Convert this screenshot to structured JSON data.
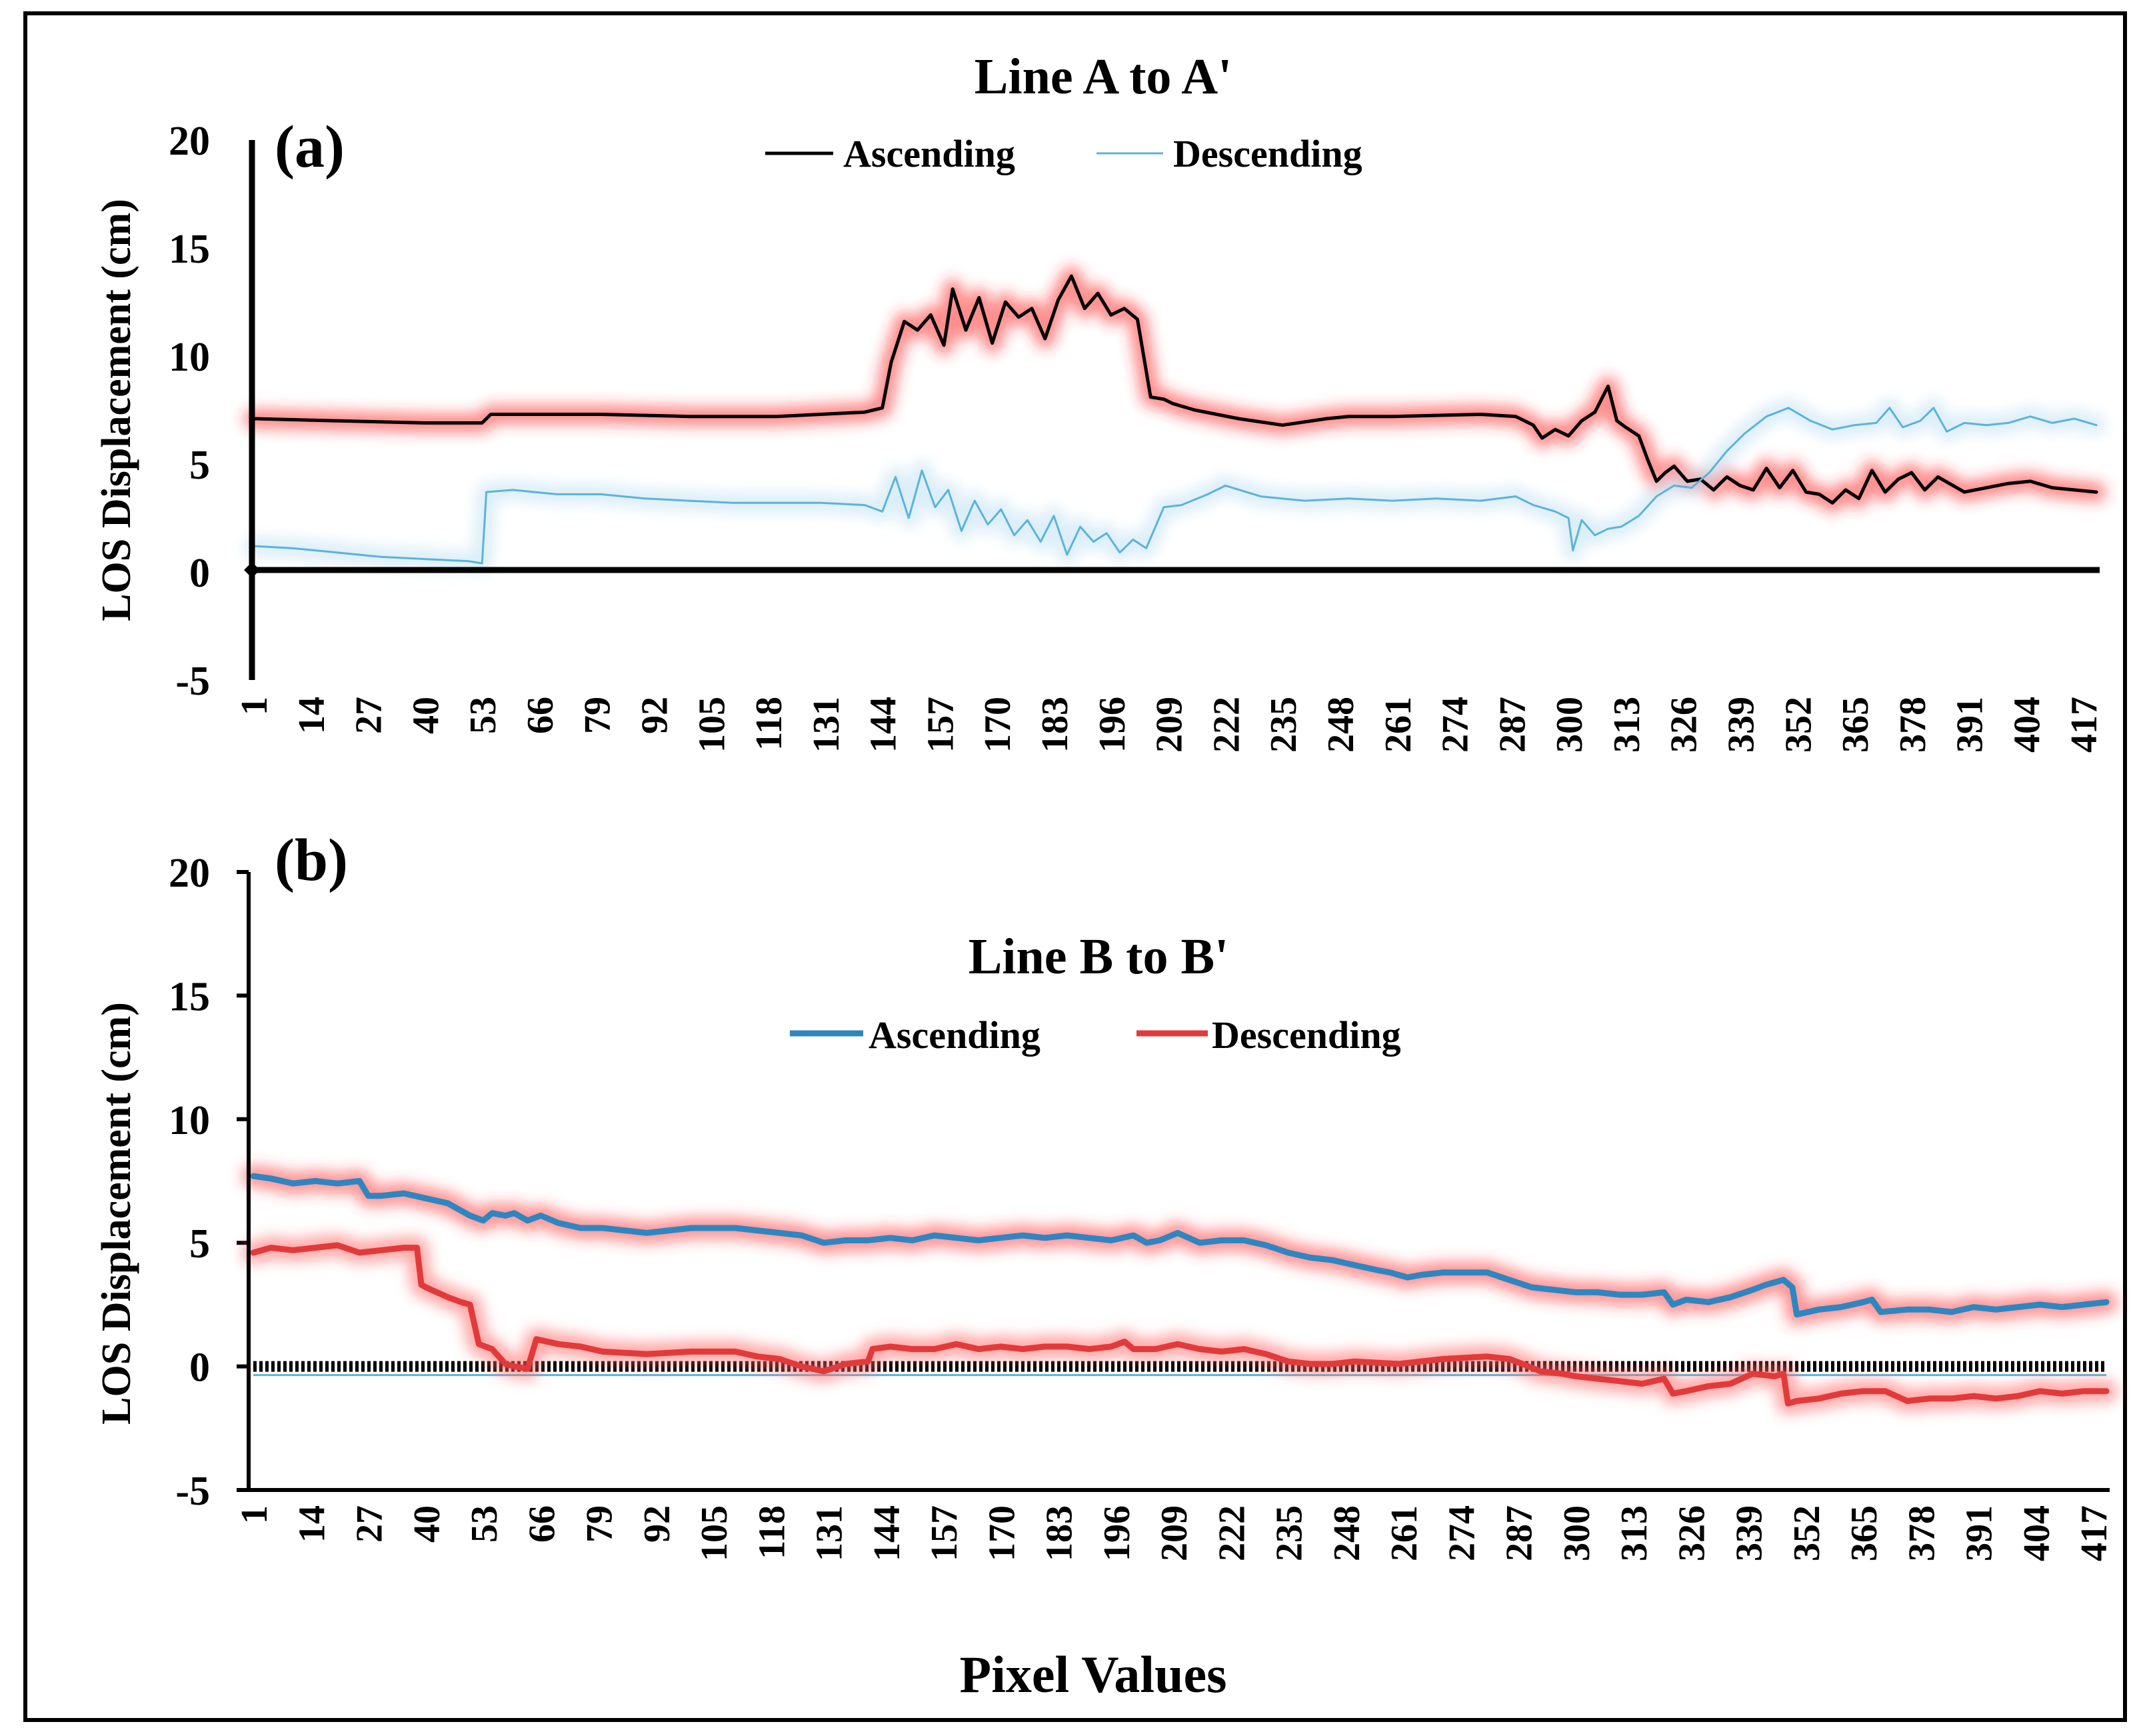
{
  "figure": {
    "xlabel": "Pixel Values"
  },
  "chart_data": [
    {
      "type": "line",
      "panel_label": "(a)",
      "title": "Line A to A'",
      "ylabel": "LOS Displacement (cm)",
      "xlabel": "",
      "ylim": [
        -5,
        20
      ],
      "y_ticks": [
        "20",
        "15",
        "10",
        "5",
        "0",
        "-5"
      ],
      "x_ticks": [
        "1",
        "14",
        "27",
        "40",
        "53",
        "66",
        "79",
        "92",
        "105",
        "118",
        "131",
        "144",
        "157",
        "170",
        "183",
        "196",
        "209",
        "222",
        "235",
        "248",
        "261",
        "274",
        "287",
        "300",
        "313",
        "326",
        "339",
        "352",
        "365",
        "378",
        "391",
        "404",
        "417"
      ],
      "xlim": [
        1,
        420
      ],
      "legend": "top-center",
      "highlight": "red glow behind Ascending",
      "series": [
        {
          "name": "Ascending",
          "color": "#000000",
          "glow_color": "#ff3030",
          "x": [
            1,
            20,
            40,
            53,
            55,
            80,
            100,
            120,
            140,
            144,
            146,
            149,
            152,
            155,
            158,
            160,
            163,
            166,
            169,
            172,
            175,
            178,
            181,
            184,
            187,
            190,
            193,
            196,
            199,
            202,
            205,
            208,
            210,
            215,
            225,
            235,
            245,
            250,
            260,
            280,
            288,
            292,
            294,
            297,
            300,
            303,
            306,
            309,
            311,
            313,
            316,
            318,
            320,
            322,
            324,
            327,
            330,
            333,
            336,
            339,
            342,
            345,
            348,
            351,
            354,
            357,
            360,
            363,
            366,
            369,
            372,
            375,
            378,
            381,
            384,
            390,
            400,
            405,
            410,
            420
          ],
          "y": [
            7.1,
            7.0,
            6.9,
            6.9,
            7.3,
            7.3,
            7.2,
            7.2,
            7.4,
            7.6,
            9.7,
            11.6,
            11.2,
            11.9,
            10.5,
            13.1,
            11.2,
            12.7,
            10.6,
            12.5,
            11.8,
            12.2,
            10.8,
            12.6,
            13.7,
            12.2,
            12.9,
            11.9,
            12.2,
            11.7,
            8.1,
            8.0,
            7.8,
            7.5,
            7.1,
            6.8,
            7.1,
            7.2,
            7.2,
            7.3,
            7.2,
            6.8,
            6.2,
            6.6,
            6.3,
            7.0,
            7.4,
            8.6,
            7.0,
            6.7,
            6.3,
            5.2,
            4.2,
            4.6,
            4.9,
            4.2,
            4.3,
            3.8,
            4.4,
            4.0,
            3.8,
            4.8,
            3.9,
            4.7,
            3.7,
            3.6,
            3.2,
            3.8,
            3.4,
            4.7,
            3.7,
            4.3,
            4.6,
            3.8,
            4.4,
            3.7,
            4.1,
            4.2,
            3.9,
            3.7
          ]
        },
        {
          "name": "Descending",
          "color": "#5ab4d8",
          "glow_color": "#bfe0f2",
          "x": [
            1,
            10,
            20,
            30,
            40,
            50,
            53,
            54,
            60,
            70,
            80,
            90,
            100,
            110,
            120,
            130,
            140,
            144,
            147,
            150,
            153,
            156,
            159,
            162,
            165,
            168,
            171,
            174,
            177,
            180,
            183,
            186,
            189,
            192,
            195,
            198,
            201,
            204,
            208,
            212,
            218,
            222,
            230,
            240,
            250,
            260,
            270,
            280,
            288,
            292,
            297,
            300,
            301,
            303,
            306,
            309,
            312,
            316,
            320,
            324,
            328,
            332,
            336,
            340,
            345,
            350,
            355,
            360,
            365,
            370,
            373,
            376,
            380,
            383,
            386,
            390,
            395,
            400,
            405,
            410,
            415,
            420
          ],
          "y": [
            1.2,
            1.1,
            0.9,
            0.7,
            0.6,
            0.5,
            0.4,
            3.7,
            3.8,
            3.6,
            3.6,
            3.4,
            3.3,
            3.2,
            3.2,
            3.2,
            3.1,
            2.8,
            4.4,
            2.5,
            4.7,
            3.0,
            3.8,
            1.9,
            3.3,
            2.2,
            2.9,
            1.7,
            2.4,
            1.4,
            2.6,
            0.8,
            2.1,
            1.4,
            1.8,
            0.9,
            1.5,
            1.1,
            3.0,
            3.1,
            3.6,
            4.0,
            3.5,
            3.3,
            3.4,
            3.3,
            3.4,
            3.3,
            3.5,
            3.1,
            2.8,
            2.5,
            1.0,
            2.4,
            1.7,
            2.0,
            2.1,
            2.6,
            3.5,
            4.0,
            3.9,
            4.6,
            5.6,
            6.4,
            7.2,
            7.6,
            7.0,
            6.6,
            6.8,
            6.9,
            7.6,
            6.7,
            7.0,
            7.6,
            6.5,
            6.9,
            6.8,
            6.9,
            7.2,
            6.9,
            7.1,
            6.8
          ]
        }
      ]
    },
    {
      "type": "line",
      "panel_label": "(b)",
      "title": "Line B to B'",
      "ylabel": "LOS Displacement (cm)",
      "xlabel": "",
      "ylim": [
        -5,
        20
      ],
      "y_ticks": [
        "20",
        "15",
        "10",
        "5",
        "0",
        "-5"
      ],
      "x_ticks": [
        "1",
        "14",
        "27",
        "40",
        "53",
        "66",
        "79",
        "92",
        "105",
        "118",
        "131",
        "144",
        "157",
        "170",
        "183",
        "196",
        "209",
        "222",
        "235",
        "248",
        "261",
        "274",
        "287",
        "300",
        "313",
        "326",
        "339",
        "352",
        "365",
        "378",
        "391",
        "404",
        "417"
      ],
      "xlim": [
        1,
        420
      ],
      "legend": "center",
      "highlight": "red glow behind both series",
      "series": [
        {
          "name": "Ascending",
          "color": "#2e86c1",
          "glow_color": "#ff4040",
          "x": [
            1,
            5,
            10,
            15,
            20,
            25,
            27,
            30,
            35,
            40,
            45,
            50,
            53,
            55,
            58,
            60,
            63,
            66,
            70,
            75,
            80,
            90,
            100,
            110,
            120,
            125,
            130,
            135,
            140,
            145,
            150,
            155,
            160,
            165,
            170,
            175,
            180,
            185,
            190,
            195,
            200,
            203,
            206,
            210,
            215,
            220,
            225,
            230,
            235,
            240,
            245,
            250,
            255,
            258,
            260,
            262,
            265,
            270,
            275,
            280,
            285,
            290,
            295,
            300,
            305,
            310,
            315,
            320,
            322,
            325,
            330,
            335,
            340,
            343,
            345,
            347,
            349,
            350,
            355,
            360,
            365,
            367,
            369,
            375,
            380,
            385,
            390,
            395,
            400,
            405,
            410,
            415,
            420
          ],
          "y": [
            7.7,
            7.6,
            7.4,
            7.5,
            7.4,
            7.5,
            6.9,
            6.9,
            7.0,
            6.8,
            6.6,
            6.1,
            5.9,
            6.2,
            6.1,
            6.2,
            5.9,
            6.1,
            5.8,
            5.6,
            5.6,
            5.4,
            5.6,
            5.6,
            5.4,
            5.3,
            5.0,
            5.1,
            5.1,
            5.2,
            5.1,
            5.3,
            5.2,
            5.1,
            5.2,
            5.3,
            5.2,
            5.3,
            5.2,
            5.1,
            5.3,
            5.0,
            5.1,
            5.4,
            5.0,
            5.1,
            5.1,
            4.9,
            4.6,
            4.4,
            4.3,
            4.1,
            3.9,
            3.8,
            3.7,
            3.6,
            3.7,
            3.8,
            3.8,
            3.8,
            3.5,
            3.2,
            3.1,
            3.0,
            3.0,
            2.9,
            2.9,
            3.0,
            2.5,
            2.7,
            2.6,
            2.8,
            3.1,
            3.3,
            3.4,
            3.5,
            3.2,
            2.1,
            2.3,
            2.4,
            2.6,
            2.7,
            2.2,
            2.3,
            2.3,
            2.2,
            2.4,
            2.3,
            2.4,
            2.5,
            2.4,
            2.5,
            2.6
          ]
        },
        {
          "name": "Descending",
          "color": "#e23a3a",
          "glow_color": "#ff6060",
          "x": [
            1,
            5,
            10,
            15,
            20,
            25,
            30,
            35,
            38,
            39,
            40,
            45,
            48,
            50,
            52,
            55,
            58,
            60,
            63,
            65,
            70,
            75,
            80,
            90,
            100,
            110,
            115,
            120,
            125,
            130,
            135,
            140,
            141,
            145,
            150,
            155,
            160,
            165,
            170,
            175,
            180,
            185,
            190,
            195,
            198,
            200,
            205,
            210,
            215,
            220,
            225,
            230,
            235,
            240,
            245,
            250,
            260,
            270,
            280,
            285,
            288,
            292,
            297,
            300,
            305,
            310,
            315,
            320,
            322,
            325,
            330,
            335,
            340,
            345,
            347,
            348,
            350,
            355,
            360,
            365,
            370,
            375,
            380,
            385,
            390,
            395,
            400,
            405,
            410,
            415,
            420
          ],
          "y": [
            4.6,
            4.8,
            4.7,
            4.8,
            4.9,
            4.6,
            4.7,
            4.8,
            4.8,
            3.3,
            3.2,
            2.8,
            2.6,
            2.5,
            0.9,
            0.7,
            0.1,
            0.0,
            -0.1,
            1.1,
            0.9,
            0.8,
            0.6,
            0.5,
            0.6,
            0.6,
            0.4,
            0.3,
            0.0,
            -0.2,
            0.1,
            0.2,
            0.7,
            0.8,
            0.7,
            0.7,
            0.9,
            0.7,
            0.8,
            0.7,
            0.8,
            0.8,
            0.7,
            0.8,
            1.0,
            0.7,
            0.7,
            0.9,
            0.7,
            0.6,
            0.7,
            0.5,
            0.2,
            0.1,
            0.1,
            0.2,
            0.1,
            0.3,
            0.4,
            0.3,
            0.1,
            -0.2,
            -0.3,
            -0.4,
            -0.5,
            -0.6,
            -0.7,
            -0.5,
            -1.1,
            -1.0,
            -0.8,
            -0.7,
            -0.3,
            -0.4,
            -0.3,
            -1.5,
            -1.4,
            -1.3,
            -1.1,
            -1.0,
            -1.0,
            -1.4,
            -1.3,
            -1.3,
            -1.2,
            -1.3,
            -1.2,
            -1.0,
            -1.1,
            -1.0,
            -1.0
          ]
        }
      ]
    }
  ]
}
